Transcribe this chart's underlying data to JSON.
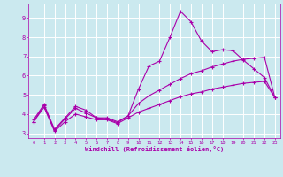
{
  "xlabel": "Windchill (Refroidissement éolien,°C)",
  "background_color": "#cbe9ef",
  "grid_color": "#ffffff",
  "line_color": "#aa00aa",
  "xlim": [
    -0.5,
    23.5
  ],
  "ylim": [
    2.75,
    9.75
  ],
  "xticks": [
    0,
    1,
    2,
    3,
    4,
    5,
    6,
    7,
    8,
    9,
    10,
    11,
    12,
    13,
    14,
    15,
    16,
    17,
    18,
    19,
    20,
    21,
    22,
    23
  ],
  "yticks": [
    3,
    4,
    5,
    6,
    7,
    8,
    9
  ],
  "line1_x": [
    0,
    1,
    2,
    3,
    4,
    5,
    6,
    7,
    8,
    9,
    10,
    11,
    12,
    13,
    14,
    15,
    16,
    17,
    18,
    19,
    20,
    21,
    22,
    23
  ],
  "line1_y": [
    3.7,
    4.5,
    3.2,
    3.8,
    4.4,
    4.2,
    3.8,
    3.8,
    3.6,
    3.9,
    5.3,
    6.5,
    6.75,
    8.0,
    9.35,
    8.8,
    7.8,
    7.25,
    7.35,
    7.3,
    6.8,
    6.35,
    5.9,
    4.85
  ],
  "line2_x": [
    0,
    1,
    2,
    3,
    4,
    5,
    6,
    7,
    8,
    9,
    10,
    11,
    12,
    13,
    14,
    15,
    16,
    17,
    18,
    19,
    20,
    21,
    22,
    23
  ],
  "line2_y": [
    3.6,
    4.45,
    3.15,
    3.75,
    4.3,
    4.05,
    3.8,
    3.75,
    3.55,
    3.9,
    4.55,
    4.95,
    5.25,
    5.55,
    5.85,
    6.1,
    6.25,
    6.45,
    6.6,
    6.75,
    6.85,
    6.9,
    6.95,
    4.85
  ],
  "line3_x": [
    0,
    1,
    2,
    3,
    4,
    5,
    6,
    7,
    8,
    9,
    10,
    11,
    12,
    13,
    14,
    15,
    16,
    17,
    18,
    19,
    20,
    21,
    22,
    23
  ],
  "line3_y": [
    3.6,
    4.35,
    3.1,
    3.6,
    4.0,
    3.85,
    3.7,
    3.7,
    3.5,
    3.8,
    4.1,
    4.3,
    4.5,
    4.7,
    4.9,
    5.05,
    5.15,
    5.3,
    5.4,
    5.5,
    5.6,
    5.65,
    5.7,
    4.85
  ]
}
